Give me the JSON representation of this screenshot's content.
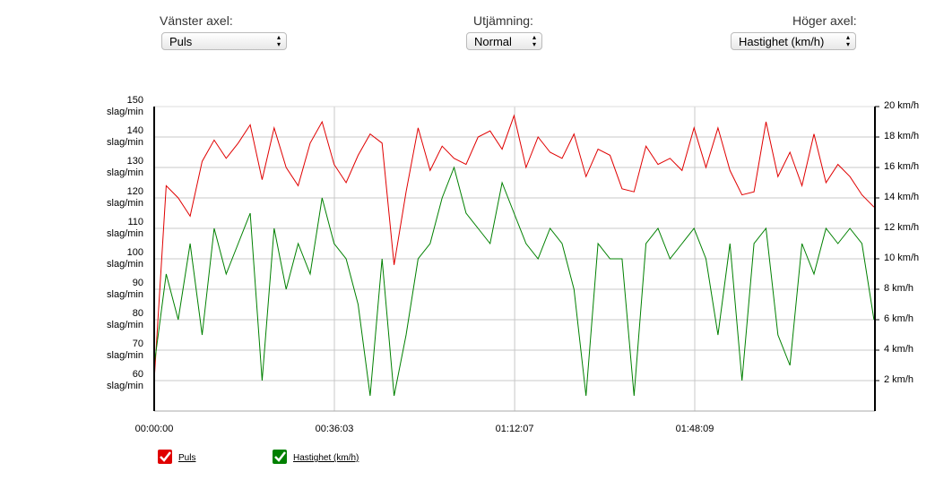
{
  "controls": {
    "left_axis": {
      "label": "Vänster axel:",
      "value": "Puls"
    },
    "smoothing": {
      "label": "Utjämning:",
      "value": "Normal"
    },
    "right_axis": {
      "label": "Höger axel:",
      "value": "Hastighet (km/h)"
    }
  },
  "chart_data": {
    "type": "line",
    "x": [
      0,
      144,
      288,
      432,
      576,
      720,
      864,
      1008,
      1152,
      1296,
      1440,
      1584,
      1728,
      1872,
      2016,
      2160,
      2304,
      2448,
      2592,
      2736,
      2880,
      3024,
      3168,
      3312,
      3456,
      3600,
      3744,
      3888,
      4032,
      4176,
      4320,
      4464,
      4608,
      4752,
      4896,
      5040,
      5184,
      5328,
      5472,
      5616,
      5760,
      5904,
      6048,
      6192,
      6336,
      6480,
      6624,
      6768,
      6912,
      7056,
      7200,
      7344,
      7488,
      7632,
      7776,
      7920,
      8064,
      8208,
      8352,
      8496,
      8640
    ],
    "series": [
      {
        "name": "Puls",
        "color": "#e00000",
        "axis": "y",
        "values": [
          60,
          124,
          120,
          114,
          132,
          139,
          133,
          138,
          144,
          126,
          143,
          130,
          124,
          138,
          145,
          131,
          125,
          134,
          141,
          138,
          98,
          122,
          143,
          129,
          137,
          133,
          131,
          140,
          142,
          136,
          147,
          130,
          140,
          135,
          133,
          141,
          127,
          136,
          134,
          123,
          122,
          137,
          131,
          133,
          129,
          143,
          130,
          143,
          129,
          121,
          122,
          145,
          127,
          135,
          124,
          141,
          125,
          131,
          127,
          121,
          117
        ]
      },
      {
        "name": "Hastighet (km/h)",
        "color": "#008000",
        "axis": "y2",
        "values": [
          3,
          9,
          6,
          11,
          5,
          12,
          9,
          11,
          13,
          2,
          12,
          8,
          11,
          9,
          14,
          11,
          10,
          7,
          1,
          10,
          1,
          5,
          10,
          11,
          14,
          16,
          13,
          12,
          11,
          15,
          13,
          11,
          10,
          12,
          11,
          8,
          1,
          11,
          10,
          10,
          1,
          11,
          12,
          10,
          11,
          12,
          10,
          5,
          11,
          2,
          11,
          12,
          5,
          3,
          11,
          9,
          12,
          11,
          12,
          11,
          6
        ]
      }
    ],
    "xlim": [
      0,
      8652
    ],
    "xticks": [
      {
        "value": 0,
        "label": "00:00:00"
      },
      {
        "value": 2163,
        "label": "00:36:03"
      },
      {
        "value": 4327,
        "label": "01:12:07"
      },
      {
        "value": 6489,
        "label": "01:48:09"
      }
    ],
    "ylim": [
      50,
      150
    ],
    "yticks": [
      {
        "value": 60,
        "label": "60 slag/min"
      },
      {
        "value": 70,
        "label": "70 slag/min"
      },
      {
        "value": 80,
        "label": "80 slag/min"
      },
      {
        "value": 90,
        "label": "90 slag/min"
      },
      {
        "value": 100,
        "label": "100 slag/min"
      },
      {
        "value": 110,
        "label": "110 slag/min"
      },
      {
        "value": 120,
        "label": "120 slag/min"
      },
      {
        "value": 130,
        "label": "130 slag/min"
      },
      {
        "value": 140,
        "label": "140 slag/min"
      },
      {
        "value": 150,
        "label": "150 slag/min"
      }
    ],
    "y2lim": [
      0,
      20
    ],
    "y2ticks": [
      {
        "value": 2,
        "label": "2 km/h"
      },
      {
        "value": 4,
        "label": "4 km/h"
      },
      {
        "value": 6,
        "label": "6 km/h"
      },
      {
        "value": 8,
        "label": "8 km/h"
      },
      {
        "value": 10,
        "label": "10 km/h"
      },
      {
        "value": 12,
        "label": "12 km/h"
      },
      {
        "value": 14,
        "label": "14 km/h"
      },
      {
        "value": 16,
        "label": "16 km/h"
      },
      {
        "value": 18,
        "label": "18 km/h"
      },
      {
        "value": 20,
        "label": "20 km/h"
      }
    ],
    "grid": true
  }
}
